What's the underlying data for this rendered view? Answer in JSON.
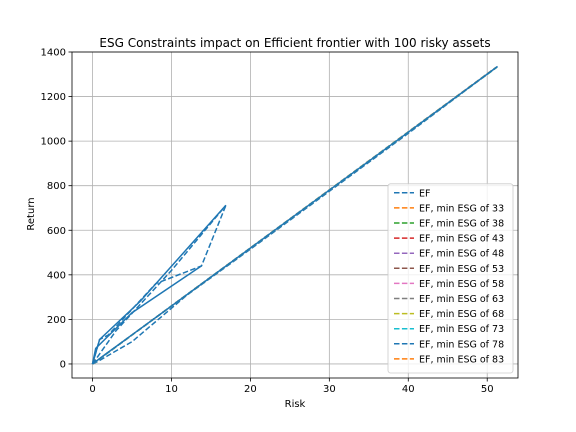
{
  "chart_data": {
    "type": "line",
    "title": "ESG Constraints impact on Efficient frontier with 100 risky assets",
    "xlabel": "Risk",
    "ylabel": "Return",
    "xlim": [
      -2.6,
      53.9
    ],
    "ylim": [
      -63,
      1400
    ],
    "xticks": [
      0,
      10,
      20,
      30,
      40,
      50
    ],
    "yticks": [
      0,
      200,
      400,
      600,
      800,
      1000,
      1200,
      1400
    ],
    "grid": true,
    "legend_position": "lower-right",
    "series": [
      {
        "name": "EF",
        "color": "#1f77b4",
        "dash": "dashed",
        "points": [
          [
            0,
            0
          ],
          [
            0.6,
            10
          ],
          [
            5,
            100
          ],
          [
            12,
            310
          ],
          [
            20,
            515
          ],
          [
            30,
            775
          ],
          [
            40,
            1035
          ],
          [
            51.3,
            1335
          ]
        ]
      },
      {
        "name": "EF, min ESG of 33",
        "color": "#ff7f0e",
        "dash": "dashed",
        "points": [
          [
            0,
            0
          ],
          [
            51.2,
            1332
          ]
        ]
      },
      {
        "name": "EF, min ESG of 38",
        "color": "#2ca02c",
        "dash": "dashed",
        "points": [
          [
            0,
            0
          ],
          [
            51.2,
            1331
          ]
        ]
      },
      {
        "name": "EF, min ESG of 43",
        "color": "#d62728",
        "dash": "dashed",
        "points": [
          [
            0,
            0
          ],
          [
            51.1,
            1330
          ]
        ]
      },
      {
        "name": "EF, min ESG of 48",
        "color": "#9467bd",
        "dash": "dashed",
        "points": [
          [
            0,
            0
          ],
          [
            51.1,
            1329
          ]
        ]
      },
      {
        "name": "EF, min ESG of 53",
        "color": "#8c564b",
        "dash": "dashed",
        "points": [
          [
            0,
            0
          ],
          [
            51.0,
            1328
          ]
        ]
      },
      {
        "name": "EF, min ESG of 58",
        "color": "#e377c2",
        "dash": "dashed",
        "points": [
          [
            0,
            0
          ],
          [
            51.0,
            1327
          ]
        ]
      },
      {
        "name": "EF, min ESG of 63",
        "color": "#7f7f7f",
        "dash": "dashed",
        "points": [
          [
            0,
            0
          ],
          [
            51.0,
            1326
          ]
        ]
      },
      {
        "name": "EF, min ESG of 68",
        "color": "#bcbd22",
        "dash": "dashed",
        "points": [
          [
            0,
            0
          ],
          [
            51.1,
            1330
          ]
        ]
      },
      {
        "name": "EF, min ESG of 73",
        "color": "#17becf",
        "dash": "dashed",
        "points": [
          [
            0,
            0
          ],
          [
            51.2,
            1332
          ]
        ]
      },
      {
        "name": "EF, min ESG of 78",
        "color": "#1f77b4",
        "dash": "dashed",
        "points": [
          [
            0,
            0
          ],
          [
            0.9,
            110
          ],
          [
            2,
            130
          ],
          [
            8,
            360
          ],
          [
            13.8,
            440
          ],
          [
            16.9,
            712
          ]
        ]
      },
      {
        "name": "EF, min ESG of 83",
        "color": "#ff7f0e",
        "dash": "dashed",
        "points": [
          [
            0,
            0
          ],
          [
            0.4,
            30
          ]
        ]
      },
      {
        "name": "",
        "color": "#1f77b4",
        "dash": "solid",
        "points": [
          [
            0,
            0
          ],
          [
            0.4,
            70
          ],
          [
            5,
            230
          ],
          [
            13.8,
            440
          ]
        ]
      },
      {
        "name": "",
        "color": "#1f77b4",
        "dash": "solid",
        "points": [
          [
            0,
            0
          ],
          [
            0.9,
            110
          ],
          [
            6,
            280
          ],
          [
            16.9,
            712
          ]
        ]
      },
      {
        "name": "",
        "color": "#1f77b4",
        "dash": "solid",
        "points": [
          [
            0,
            0
          ],
          [
            1.5,
            40
          ],
          [
            10,
            260
          ],
          [
            20,
            520
          ],
          [
            30,
            780
          ],
          [
            40,
            1040
          ],
          [
            51.3,
            1335
          ]
        ]
      },
      {
        "name": "",
        "color": "#1f77b4",
        "dash": "dashed",
        "points": [
          [
            0,
            0
          ],
          [
            3,
            150
          ],
          [
            10,
            420
          ],
          [
            16.9,
            712
          ]
        ]
      }
    ]
  }
}
